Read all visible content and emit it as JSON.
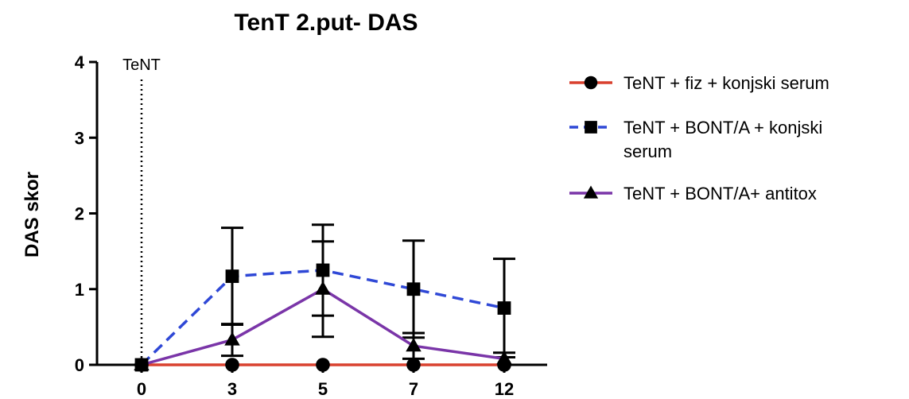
{
  "chart_data": {
    "type": "line",
    "title": "TenT 2.put- DAS",
    "xlabel": "",
    "ylabel": "DAS skor",
    "x": [
      0,
      3,
      5,
      7,
      12
    ],
    "x_tick_labels": [
      "0",
      "3",
      "5",
      "7",
      "12"
    ],
    "y_tick_labels": [
      "0",
      "1",
      "2",
      "3",
      "4"
    ],
    "ylim": [
      0,
      4
    ],
    "grid": false,
    "legend_position": "right",
    "annotation": {
      "text": "TeNT",
      "x": 0
    },
    "series": [
      {
        "name": "TeNT + fiz + konjski serum",
        "legend_lines": [
          "TeNT + fiz + konjski serum"
        ],
        "values": [
          0,
          0,
          0,
          0,
          0
        ],
        "errors": [
          0,
          0,
          0,
          0,
          0
        ],
        "color": "#d9412f",
        "line_style": "solid",
        "marker": "circle"
      },
      {
        "name": "TeNT + BONT/A + konjski serum",
        "legend_lines": [
          "TeNT + BONT/A + konjski",
          "serum"
        ],
        "values": [
          0,
          1.17,
          1.25,
          1.0,
          0.75
        ],
        "errors": [
          0,
          0.64,
          0.6,
          0.64,
          0.65
        ],
        "color": "#2f48d6",
        "line_style": "dashed",
        "marker": "square"
      },
      {
        "name": "TeNT + BONT/A+ antitox",
        "legend_lines": [
          "TeNT + BONT/A+ antitox"
        ],
        "values": [
          0,
          0.33,
          1.0,
          0.25,
          0.08
        ],
        "errors": [
          0,
          0.21,
          0.63,
          0.17,
          0.08
        ],
        "color": "#7a35a8",
        "line_style": "solid",
        "marker": "triangle"
      }
    ]
  }
}
